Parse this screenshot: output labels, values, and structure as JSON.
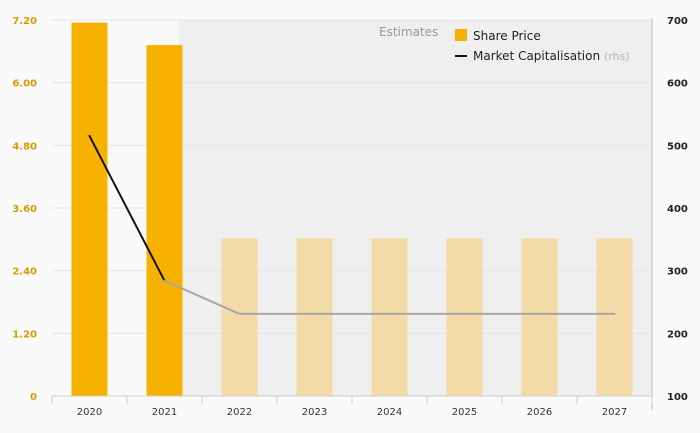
{
  "chart_data": {
    "type": "bar+line",
    "categories": [
      "2020",
      "2021",
      "2022",
      "2023",
      "2024",
      "2025",
      "2026",
      "2027"
    ],
    "series": [
      {
        "name": "Share Price",
        "type": "bar",
        "axis": "left",
        "values": [
          7.15,
          6.72,
          3.02,
          3.02,
          3.02,
          3.02,
          3.02,
          3.02
        ],
        "estimate_from_index": 2,
        "color": "#f7b100",
        "estimate_color": "#f2dba6"
      },
      {
        "name": "Market Capitalisation",
        "name_suffix": "(rhs)",
        "type": "line",
        "axis": "right",
        "values": [
          515,
          284,
          231,
          231,
          231,
          231,
          231,
          231
        ],
        "estimate_from_index": 1,
        "color": "#111111",
        "estimate_color": "#a8a8a8"
      }
    ],
    "y_left": {
      "min": 0,
      "max": 7.2,
      "ticks": [
        "0",
        "1.20",
        "2.40",
        "3.60",
        "4.80",
        "6.00",
        "7.20"
      ]
    },
    "y_right": {
      "min": 100,
      "max": 700,
      "ticks": [
        "100",
        "200",
        "300",
        "400",
        "500",
        "600",
        "700"
      ]
    },
    "estimates_label": "Estimates",
    "estimates_start_category": "2022",
    "legend_position": "top-right",
    "grid": true,
    "shading": {
      "estimates": "#efefef"
    }
  }
}
